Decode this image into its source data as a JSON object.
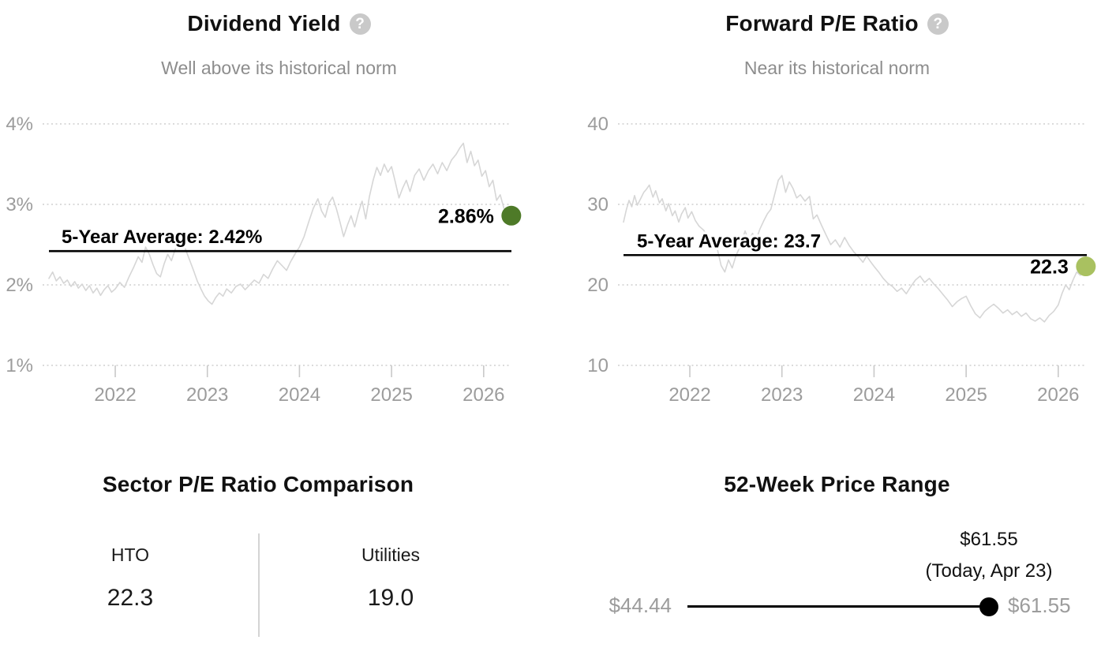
{
  "icons": {
    "help_glyph": "?"
  },
  "colors": {
    "background": "#ffffff",
    "title_text": "#111111",
    "subtitle_text": "#8d8d8d",
    "axis_text": "#9c9c9c",
    "gridline": "#cfcfcf",
    "series_line": "#d6d6d6",
    "average_line": "#000000",
    "dividend_dot": "#4e7a28",
    "pe_dot": "#a9c160",
    "range_dot": "#000000"
  },
  "chart_data": [
    {
      "type": "line",
      "title": "Dividend Yield",
      "subtitle": "Well above its historical norm",
      "series_name": "Dividend Yield (%)",
      "legend": "none",
      "grid": "horizontal-dotted",
      "dot_color": "#4e7a28",
      "y_axis": {
        "ticks": [
          {
            "label": "4%",
            "value": 4
          },
          {
            "label": "3%",
            "value": 3
          },
          {
            "label": "2%",
            "value": 2
          },
          {
            "label": "1%",
            "value": 1
          }
        ],
        "ylim": [
          1,
          4
        ]
      },
      "x_axis": {
        "ticks": [
          2022,
          2023,
          2024,
          2025,
          2026
        ],
        "xlim": [
          2021.28,
          2026.3
        ]
      },
      "average": {
        "label": "5-Year Average: 2.42%",
        "value": 2.42
      },
      "current": {
        "label": "2.86%",
        "value": 2.86
      },
      "series": [
        [
          2021.28,
          2.08
        ],
        [
          2021.32,
          2.16
        ],
        [
          2021.36,
          2.05
        ],
        [
          2021.4,
          2.1
        ],
        [
          2021.44,
          2.02
        ],
        [
          2021.48,
          2.06
        ],
        [
          2021.52,
          1.98
        ],
        [
          2021.56,
          2.04
        ],
        [
          2021.6,
          1.96
        ],
        [
          2021.64,
          2.01
        ],
        [
          2021.68,
          1.93
        ],
        [
          2021.72,
          1.99
        ],
        [
          2021.76,
          1.9
        ],
        [
          2021.8,
          1.96
        ],
        [
          2021.84,
          1.87
        ],
        [
          2021.88,
          1.94
        ],
        [
          2021.92,
          1.99
        ],
        [
          2021.96,
          1.91
        ],
        [
          2022.0,
          1.95
        ],
        [
          2022.05,
          2.03
        ],
        [
          2022.1,
          1.97
        ],
        [
          2022.15,
          2.1
        ],
        [
          2022.2,
          2.22
        ],
        [
          2022.25,
          2.35
        ],
        [
          2022.29,
          2.28
        ],
        [
          2022.33,
          2.47
        ],
        [
          2022.37,
          2.38
        ],
        [
          2022.41,
          2.25
        ],
        [
          2022.45,
          2.14
        ],
        [
          2022.49,
          2.1
        ],
        [
          2022.53,
          2.26
        ],
        [
          2022.57,
          2.38
        ],
        [
          2022.61,
          2.3
        ],
        [
          2022.65,
          2.44
        ],
        [
          2022.69,
          2.52
        ],
        [
          2022.73,
          2.55
        ],
        [
          2022.77,
          2.42
        ],
        [
          2022.81,
          2.3
        ],
        [
          2022.85,
          2.18
        ],
        [
          2022.89,
          2.05
        ],
        [
          2022.93,
          1.95
        ],
        [
          2022.97,
          1.86
        ],
        [
          2023.01,
          1.8
        ],
        [
          2023.05,
          1.76
        ],
        [
          2023.09,
          1.84
        ],
        [
          2023.13,
          1.9
        ],
        [
          2023.17,
          1.86
        ],
        [
          2023.21,
          1.95
        ],
        [
          2023.26,
          1.9
        ],
        [
          2023.31,
          1.98
        ],
        [
          2023.36,
          2.01
        ],
        [
          2023.41,
          1.94
        ],
        [
          2023.46,
          2.0
        ],
        [
          2023.51,
          2.06
        ],
        [
          2023.56,
          2.02
        ],
        [
          2023.61,
          2.13
        ],
        [
          2023.66,
          2.08
        ],
        [
          2023.71,
          2.2
        ],
        [
          2023.76,
          2.3
        ],
        [
          2023.81,
          2.24
        ],
        [
          2023.86,
          2.18
        ],
        [
          2023.9,
          2.28
        ],
        [
          2023.95,
          2.38
        ],
        [
          2024.0,
          2.47
        ],
        [
          2024.05,
          2.6
        ],
        [
          2024.1,
          2.78
        ],
        [
          2024.15,
          2.95
        ],
        [
          2024.2,
          3.07
        ],
        [
          2024.24,
          2.92
        ],
        [
          2024.28,
          2.84
        ],
        [
          2024.32,
          3.02
        ],
        [
          2024.36,
          3.09
        ],
        [
          2024.4,
          2.95
        ],
        [
          2024.44,
          2.78
        ],
        [
          2024.48,
          2.6
        ],
        [
          2024.52,
          2.74
        ],
        [
          2024.56,
          2.86
        ],
        [
          2024.6,
          2.72
        ],
        [
          2024.64,
          2.9
        ],
        [
          2024.68,
          3.04
        ],
        [
          2024.72,
          2.82
        ],
        [
          2024.76,
          3.1
        ],
        [
          2024.8,
          3.3
        ],
        [
          2024.84,
          3.46
        ],
        [
          2024.88,
          3.36
        ],
        [
          2024.92,
          3.5
        ],
        [
          2024.96,
          3.4
        ],
        [
          2025.0,
          3.47
        ],
        [
          2025.04,
          3.28
        ],
        [
          2025.08,
          3.08
        ],
        [
          2025.12,
          3.2
        ],
        [
          2025.16,
          3.3
        ],
        [
          2025.2,
          3.16
        ],
        [
          2025.25,
          3.36
        ],
        [
          2025.3,
          3.44
        ],
        [
          2025.35,
          3.3
        ],
        [
          2025.4,
          3.42
        ],
        [
          2025.45,
          3.5
        ],
        [
          2025.5,
          3.38
        ],
        [
          2025.55,
          3.52
        ],
        [
          2025.6,
          3.42
        ],
        [
          2025.65,
          3.55
        ],
        [
          2025.7,
          3.62
        ],
        [
          2025.74,
          3.7
        ],
        [
          2025.78,
          3.76
        ],
        [
          2025.82,
          3.52
        ],
        [
          2025.86,
          3.66
        ],
        [
          2025.9,
          3.48
        ],
        [
          2025.94,
          3.55
        ],
        [
          2025.98,
          3.35
        ],
        [
          2026.02,
          3.42
        ],
        [
          2026.06,
          3.22
        ],
        [
          2026.1,
          3.3
        ],
        [
          2026.14,
          3.05
        ],
        [
          2026.18,
          3.12
        ],
        [
          2026.22,
          2.95
        ],
        [
          2026.26,
          2.9
        ],
        [
          2026.3,
          2.86
        ]
      ]
    },
    {
      "type": "line",
      "title": "Forward P/E Ratio",
      "subtitle": "Near its historical norm",
      "series_name": "Forward P/E Ratio",
      "legend": "none",
      "grid": "horizontal-dotted",
      "dot_color": "#a9c160",
      "y_axis": {
        "ticks": [
          {
            "label": "40",
            "value": 40
          },
          {
            "label": "30",
            "value": 30
          },
          {
            "label": "20",
            "value": 20
          },
          {
            "label": "10",
            "value": 10
          }
        ],
        "ylim": [
          10,
          40
        ]
      },
      "x_axis": {
        "ticks": [
          2022,
          2023,
          2024,
          2025,
          2026
        ],
        "xlim": [
          2021.28,
          2026.3
        ]
      },
      "average": {
        "label": "5-Year Average: 23.7",
        "value": 23.7
      },
      "current": {
        "label": "22.3",
        "value": 22.3
      },
      "series": [
        [
          2021.28,
          27.8
        ],
        [
          2021.31,
          29.3
        ],
        [
          2021.34,
          30.5
        ],
        [
          2021.37,
          29.7
        ],
        [
          2021.4,
          31.1
        ],
        [
          2021.43,
          29.9
        ],
        [
          2021.47,
          30.8
        ],
        [
          2021.5,
          31.5
        ],
        [
          2021.53,
          31.9
        ],
        [
          2021.56,
          32.4
        ],
        [
          2021.6,
          30.9
        ],
        [
          2021.63,
          31.7
        ],
        [
          2021.67,
          30.2
        ],
        [
          2021.7,
          30.7
        ],
        [
          2021.74,
          29.2
        ],
        [
          2021.77,
          30.1
        ],
        [
          2021.81,
          28.6
        ],
        [
          2021.84,
          29.2
        ],
        [
          2021.88,
          27.8
        ],
        [
          2021.91,
          28.8
        ],
        [
          2021.95,
          29.6
        ],
        [
          2021.98,
          28.3
        ],
        [
          2022.02,
          29.1
        ],
        [
          2022.06,
          28.0
        ],
        [
          2022.1,
          27.3
        ],
        [
          2022.15,
          26.8
        ],
        [
          2022.2,
          25.9
        ],
        [
          2022.25,
          24.9
        ],
        [
          2022.3,
          24.4
        ],
        [
          2022.34,
          22.4
        ],
        [
          2022.38,
          21.6
        ],
        [
          2022.42,
          23.1
        ],
        [
          2022.46,
          22.1
        ],
        [
          2022.5,
          23.6
        ],
        [
          2022.55,
          24.9
        ],
        [
          2022.6,
          26.7
        ],
        [
          2022.64,
          25.5
        ],
        [
          2022.68,
          26.4
        ],
        [
          2022.72,
          25.6
        ],
        [
          2022.76,
          26.9
        ],
        [
          2022.8,
          27.9
        ],
        [
          2022.84,
          28.8
        ],
        [
          2022.88,
          29.4
        ],
        [
          2022.92,
          31.2
        ],
        [
          2022.96,
          33.0
        ],
        [
          2023.0,
          33.6
        ],
        [
          2023.04,
          31.5
        ],
        [
          2023.08,
          32.8
        ],
        [
          2023.12,
          32.0
        ],
        [
          2023.16,
          30.8
        ],
        [
          2023.2,
          31.2
        ],
        [
          2023.25,
          30.4
        ],
        [
          2023.3,
          31.0
        ],
        [
          2023.34,
          28.2
        ],
        [
          2023.38,
          28.7
        ],
        [
          2023.43,
          27.4
        ],
        [
          2023.48,
          26.2
        ],
        [
          2023.53,
          25.0
        ],
        [
          2023.58,
          25.6
        ],
        [
          2023.63,
          24.7
        ],
        [
          2023.68,
          25.9
        ],
        [
          2023.73,
          24.9
        ],
        [
          2023.78,
          24.1
        ],
        [
          2023.83,
          23.5
        ],
        [
          2023.88,
          22.8
        ],
        [
          2023.92,
          23.6
        ],
        [
          2023.96,
          22.9
        ],
        [
          2024.0,
          22.3
        ],
        [
          2024.05,
          21.6
        ],
        [
          2024.1,
          20.8
        ],
        [
          2024.15,
          20.2
        ],
        [
          2024.2,
          19.8
        ],
        [
          2024.25,
          19.2
        ],
        [
          2024.3,
          19.6
        ],
        [
          2024.35,
          18.9
        ],
        [
          2024.4,
          19.8
        ],
        [
          2024.45,
          20.6
        ],
        [
          2024.5,
          21.1
        ],
        [
          2024.55,
          20.3
        ],
        [
          2024.6,
          20.8
        ],
        [
          2024.65,
          20.1
        ],
        [
          2024.7,
          19.5
        ],
        [
          2024.75,
          18.8
        ],
        [
          2024.8,
          18.1
        ],
        [
          2024.85,
          17.3
        ],
        [
          2024.9,
          17.9
        ],
        [
          2024.95,
          18.3
        ],
        [
          2025.0,
          18.6
        ],
        [
          2025.05,
          17.4
        ],
        [
          2025.1,
          16.4
        ],
        [
          2025.15,
          15.9
        ],
        [
          2025.2,
          16.7
        ],
        [
          2025.25,
          17.2
        ],
        [
          2025.3,
          17.6
        ],
        [
          2025.35,
          17.1
        ],
        [
          2025.4,
          16.5
        ],
        [
          2025.45,
          16.9
        ],
        [
          2025.5,
          16.3
        ],
        [
          2025.55,
          16.7
        ],
        [
          2025.6,
          16.1
        ],
        [
          2025.65,
          16.5
        ],
        [
          2025.7,
          15.8
        ],
        [
          2025.75,
          15.5
        ],
        [
          2025.8,
          15.9
        ],
        [
          2025.85,
          15.4
        ],
        [
          2025.9,
          16.2
        ],
        [
          2025.95,
          16.7
        ],
        [
          2026.0,
          17.5
        ],
        [
          2026.04,
          18.9
        ],
        [
          2026.08,
          20.0
        ],
        [
          2026.12,
          19.4
        ],
        [
          2026.16,
          20.6
        ],
        [
          2026.2,
          21.6
        ],
        [
          2026.24,
          21.2
        ],
        [
          2026.28,
          21.9
        ],
        [
          2026.3,
          22.3
        ]
      ]
    }
  ],
  "sector_comparison": {
    "title": "Sector P/E Ratio Comparison",
    "columns": [
      {
        "label": "HTO",
        "value": "22.3"
      },
      {
        "label": "Utilities",
        "value": "19.0"
      }
    ]
  },
  "price_range": {
    "title": "52-Week Price Range",
    "low_label": "$44.44",
    "high_label": "$61.55",
    "current_label": "$61.55",
    "current_date_label": "(Today, Apr 23)",
    "low": 44.44,
    "high": 61.55,
    "current": 61.55
  }
}
